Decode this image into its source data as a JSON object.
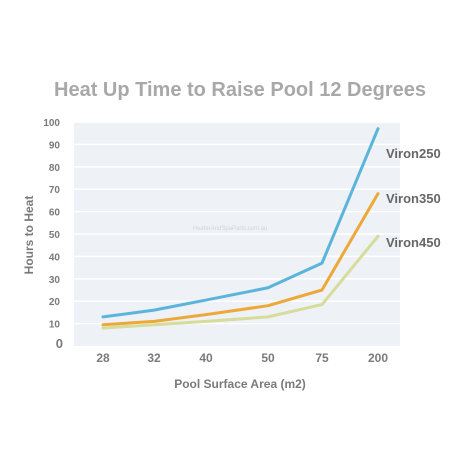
{
  "chart_data": {
    "type": "line",
    "title": "Heat Up Time to Raise Pool 12 Degrees",
    "xlabel": "Pool Surface Area (m2)",
    "ylabel": "Hours to Heat",
    "categories": [
      "28",
      "32",
      "40",
      "50",
      "75",
      "200"
    ],
    "yticks": [
      0,
      10,
      20,
      30,
      40,
      50,
      60,
      70,
      80,
      90,
      100
    ],
    "ylim": [
      0,
      100
    ],
    "grid": true,
    "legend": "series labels at right end of lines",
    "watermark": "HeaterAndSpaParts.com.au",
    "series": [
      {
        "name": "Viron250",
        "color": "#5bb4da",
        "values": [
          13,
          16,
          20.5,
          26,
          37,
          97
        ]
      },
      {
        "name": "Viron350",
        "color": "#eda83a",
        "values": [
          9.5,
          11,
          14,
          18,
          25,
          68
        ]
      },
      {
        "name": "Viron450",
        "color": "#d6dc9a",
        "values": [
          8,
          9.5,
          11,
          13,
          18.5,
          49
        ]
      }
    ]
  }
}
